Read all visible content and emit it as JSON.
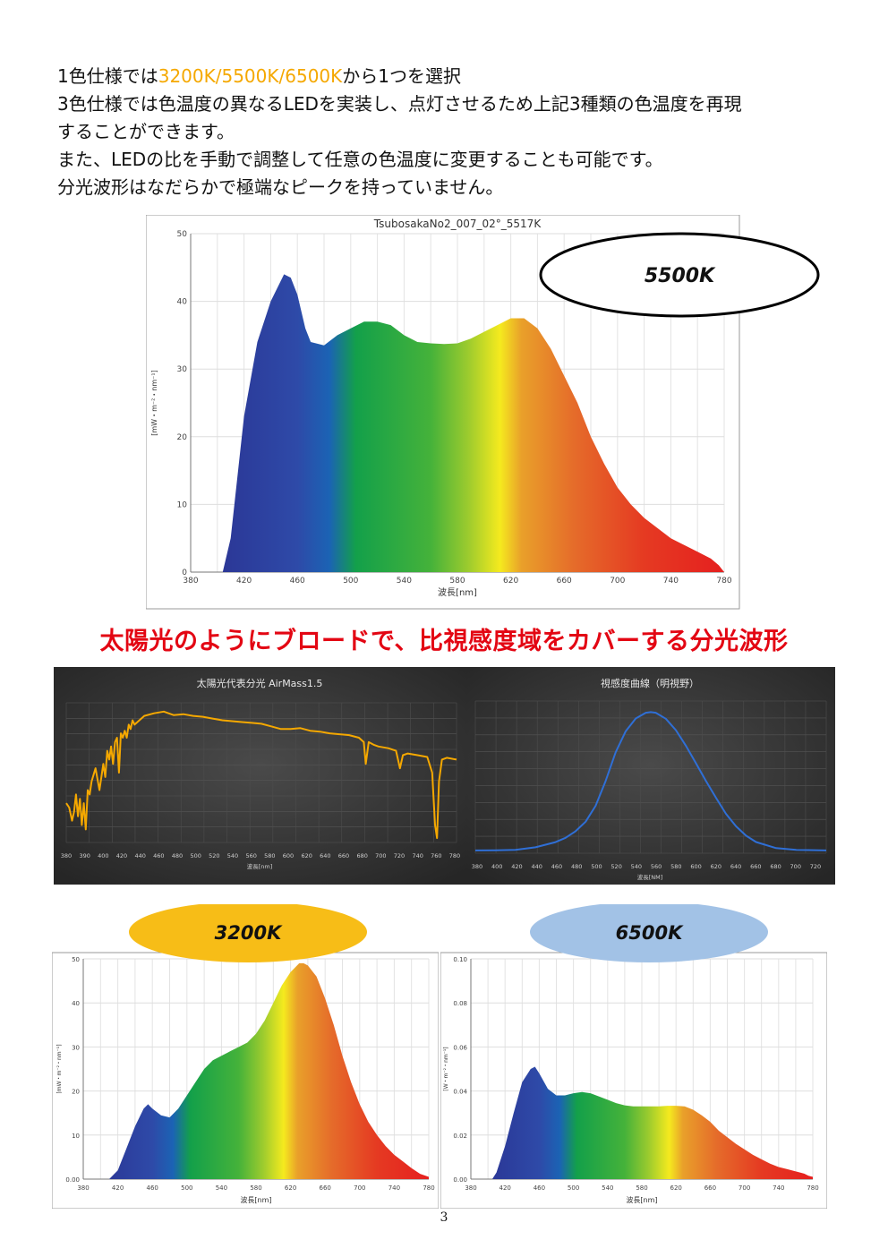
{
  "intro": {
    "line1_prefix": "1色仕様では",
    "line1_highlight": "3200K/5500K/6500K",
    "line1_suffix": "から1つを選択",
    "line2": "3色仕様では色温度の異なるLEDを実装し、点灯させるため上記3種類の色温度を再現",
    "line3": "することができます。",
    "line4": "また、LEDの比を手動で調整して任意の色温度に変更することも可能です。",
    "line5": "分光波形はなだらかで極端なピークを持っていません。"
  },
  "headline": "太陽光のようにブロードで、比視感度域をカバーする分光波形",
  "page_number": "3",
  "colors": {
    "highlight": "#f5a800",
    "headline": "#e30613",
    "badge_3200": "#f7bd17",
    "badge_6500": "#a2c2e6",
    "sun_curve": "#f5a800",
    "vis_curve": "#2f6fd6"
  },
  "chart_data": [
    {
      "type": "area",
      "title": "TsubosakaNo2_007_02°_5517K",
      "badge": "5500K",
      "xlabel": "波長[nm]",
      "ylabel": "[mW・m⁻²・nm⁻¹]",
      "xlim": [
        380,
        780
      ],
      "ylim": [
        0,
        50
      ],
      "x_ticks": [
        "380",
        "420",
        "460",
        "500",
        "540",
        "580",
        "620",
        "660",
        "700",
        "740",
        "780"
      ],
      "y_ticks": [
        "0",
        "10",
        "20",
        "30",
        "40",
        "50"
      ],
      "x": [
        404,
        410,
        420,
        430,
        440,
        450,
        455,
        460,
        466,
        470,
        480,
        490,
        500,
        510,
        520,
        530,
        540,
        550,
        560,
        570,
        580,
        590,
        600,
        610,
        620,
        630,
        640,
        650,
        660,
        670,
        680,
        690,
        700,
        710,
        720,
        730,
        740,
        750,
        760,
        770,
        776,
        780
      ],
      "y": [
        0,
        5,
        23,
        34,
        40,
        44,
        43.5,
        41,
        36,
        34,
        33.5,
        35,
        36,
        37,
        37,
        36.5,
        35,
        34,
        33.8,
        33.7,
        33.8,
        34.5,
        35.5,
        36.5,
        37.5,
        37.5,
        36,
        33,
        29,
        25,
        20,
        16,
        12.5,
        10,
        8,
        6.5,
        5,
        4,
        3,
        2,
        1,
        0
      ]
    },
    {
      "type": "line",
      "title": "太陽光代表分光 AirMass1.5",
      "xlabel": "波長[nm]",
      "xlim": [
        380,
        780
      ],
      "x_ticks": [
        "380",
        "390",
        "400",
        "420",
        "440",
        "460",
        "480",
        "500",
        "520",
        "540",
        "560",
        "580",
        "600",
        "620",
        "640",
        "660",
        "680",
        "700",
        "720",
        "740",
        "760",
        "780"
      ],
      "x": [
        380,
        383,
        386,
        388,
        390,
        392,
        394,
        396,
        398,
        400,
        402,
        404,
        406,
        410,
        414,
        418,
        420,
        422,
        424,
        426,
        428,
        430,
        432,
        434,
        436,
        438,
        440,
        442,
        444,
        446,
        448,
        450,
        460,
        470,
        480,
        490,
        500,
        510,
        520,
        530,
        540,
        550,
        560,
        570,
        580,
        590,
        600,
        610,
        620,
        630,
        640,
        650,
        660,
        670,
        680,
        685,
        687,
        690,
        695,
        700,
        710,
        718,
        722,
        725,
        730,
        740,
        750,
        755,
        758,
        760,
        762,
        765,
        770,
        780
      ],
      "y": [
        0.45,
        0.4,
        0.25,
        0.35,
        0.55,
        0.3,
        0.5,
        0.2,
        0.45,
        0.15,
        0.6,
        0.55,
        0.7,
        0.85,
        0.6,
        0.9,
        0.75,
        1.05,
        0.95,
        1.1,
        0.9,
        1.15,
        1.2,
        0.8,
        1.25,
        1.2,
        1.28,
        1.2,
        1.35,
        1.3,
        1.4,
        1.35,
        1.45,
        1.48,
        1.5,
        1.46,
        1.47,
        1.45,
        1.44,
        1.42,
        1.4,
        1.39,
        1.38,
        1.37,
        1.36,
        1.33,
        1.3,
        1.3,
        1.31,
        1.28,
        1.27,
        1.25,
        1.24,
        1.23,
        1.2,
        1.15,
        0.9,
        1.15,
        1.12,
        1.1,
        1.08,
        1.05,
        0.85,
        1.0,
        1.02,
        1.0,
        0.98,
        0.8,
        0.2,
        0.05,
        0.7,
        0.95,
        0.97,
        0.95
      ]
    },
    {
      "type": "line",
      "title": "視感度曲線（明視野）",
      "xlabel": "波長[NM]",
      "xlim": [
        380,
        730
      ],
      "x_ticks": [
        "380",
        "400",
        "420",
        "440",
        "460",
        "480",
        "500",
        "520",
        "540",
        "560",
        "580",
        "600",
        "620",
        "640",
        "660",
        "680",
        "700",
        "720"
      ],
      "x": [
        380,
        400,
        420,
        440,
        460,
        470,
        480,
        490,
        500,
        510,
        520,
        530,
        540,
        550,
        555,
        560,
        570,
        580,
        590,
        600,
        610,
        620,
        630,
        640,
        650,
        660,
        680,
        700,
        730
      ],
      "y": [
        0.0,
        0.0004,
        0.004,
        0.023,
        0.06,
        0.091,
        0.139,
        0.208,
        0.323,
        0.503,
        0.71,
        0.862,
        0.954,
        0.995,
        1.0,
        0.995,
        0.952,
        0.87,
        0.757,
        0.631,
        0.503,
        0.381,
        0.265,
        0.175,
        0.107,
        0.061,
        0.017,
        0.004,
        0.0
      ]
    },
    {
      "type": "area",
      "badge": "3200K",
      "xlabel": "波長[nm]",
      "ylabel": "[mW・m⁻²・nm⁻¹]",
      "xlim": [
        380,
        780
      ],
      "ylim": [
        0,
        50
      ],
      "x_ticks": [
        "380",
        "420",
        "460",
        "500",
        "540",
        "580",
        "620",
        "660",
        "700",
        "740",
        "780"
      ],
      "y_ticks": [
        "0.00",
        "10",
        "20",
        "30",
        "40",
        "50"
      ],
      "x": [
        410,
        420,
        430,
        440,
        450,
        455,
        460,
        470,
        480,
        490,
        500,
        510,
        520,
        530,
        540,
        550,
        560,
        570,
        580,
        590,
        600,
        610,
        620,
        630,
        635,
        640,
        650,
        660,
        670,
        680,
        690,
        700,
        710,
        720,
        730,
        740,
        750,
        760,
        770,
        780
      ],
      "y": [
        0,
        2,
        7,
        12,
        16,
        17,
        16,
        14.5,
        14,
        16,
        19,
        22,
        25,
        27,
        28,
        29,
        30,
        31,
        33,
        36,
        40,
        44,
        47,
        49,
        49,
        48.5,
        46,
        41,
        35,
        28,
        22,
        17,
        13,
        10,
        7.5,
        5.5,
        4,
        2.5,
        1.2,
        0.5
      ]
    },
    {
      "type": "area",
      "badge": "6500K",
      "xlabel": "波長[nm]",
      "ylabel": "[W・m⁻²・nm⁻¹]",
      "xlim": [
        380,
        780
      ],
      "ylim": [
        0,
        0.1
      ],
      "x_ticks": [
        "380",
        "420",
        "460",
        "500",
        "540",
        "580",
        "620",
        "660",
        "700",
        "740",
        "780"
      ],
      "y_ticks": [
        "0.00",
        "0.02",
        "0.04",
        "0.06",
        "0.08",
        "0.10"
      ],
      "x": [
        405,
        410,
        420,
        430,
        440,
        450,
        455,
        460,
        470,
        480,
        490,
        500,
        510,
        520,
        530,
        540,
        550,
        560,
        570,
        580,
        590,
        600,
        610,
        620,
        630,
        640,
        650,
        660,
        670,
        680,
        690,
        700,
        710,
        720,
        730,
        740,
        750,
        760,
        770,
        775,
        780
      ],
      "y": [
        0,
        0.003,
        0.015,
        0.03,
        0.044,
        0.05,
        0.051,
        0.048,
        0.041,
        0.038,
        0.038,
        0.039,
        0.0395,
        0.039,
        0.0375,
        0.036,
        0.0345,
        0.0335,
        0.033,
        0.033,
        0.033,
        0.033,
        0.0333,
        0.0333,
        0.033,
        0.0315,
        0.029,
        0.026,
        0.022,
        0.019,
        0.016,
        0.0135,
        0.011,
        0.009,
        0.007,
        0.0055,
        0.0045,
        0.0035,
        0.0025,
        0.0015,
        0.001
      ]
    }
  ]
}
